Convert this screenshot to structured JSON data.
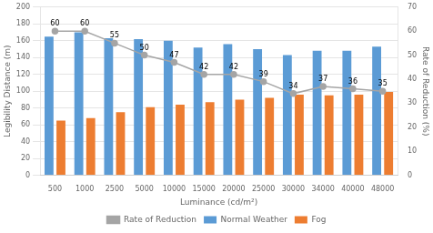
{
  "chart_data": {
    "type": "bar",
    "categories": [
      "500",
      "1000",
      "2500",
      "5000",
      "10000",
      "15000",
      "20000",
      "25000",
      "30000",
      "34000",
      "40000",
      "48000"
    ],
    "series": [
      {
        "name": "Normal Weather",
        "color": "#5B9BD5",
        "values": [
          165,
          170,
          163,
          162,
          160,
          152,
          156,
          150,
          143,
          148,
          148,
          153
        ]
      },
      {
        "name": "Fog",
        "color": "#ED7D31",
        "values": [
          65,
          68,
          75,
          81,
          84,
          87,
          90,
          92,
          96,
          95,
          96,
          99
        ]
      },
      {
        "name": "Rate of Reduction",
        "type": "line",
        "axis": "y2",
        "color": "#A5A5A5",
        "marker": "circle",
        "data_labels": true,
        "values": [
          60,
          60,
          55,
          50,
          47,
          42,
          42,
          39,
          34,
          37,
          36,
          35
        ]
      }
    ],
    "xlabel": "Luminance (cd/m²)",
    "ylabel": "Legibility Distance (m)",
    "y2label": "Rate of Reduction (%)",
    "ylim": [
      0,
      200
    ],
    "yticks": [
      0,
      20,
      40,
      60,
      80,
      100,
      120,
      140,
      160,
      180,
      200
    ],
    "y2lim": [
      0,
      70
    ],
    "y2ticks": [
      0,
      10,
      20,
      30,
      40,
      50,
      60,
      70
    ],
    "grid": true,
    "legend": "bottom"
  }
}
